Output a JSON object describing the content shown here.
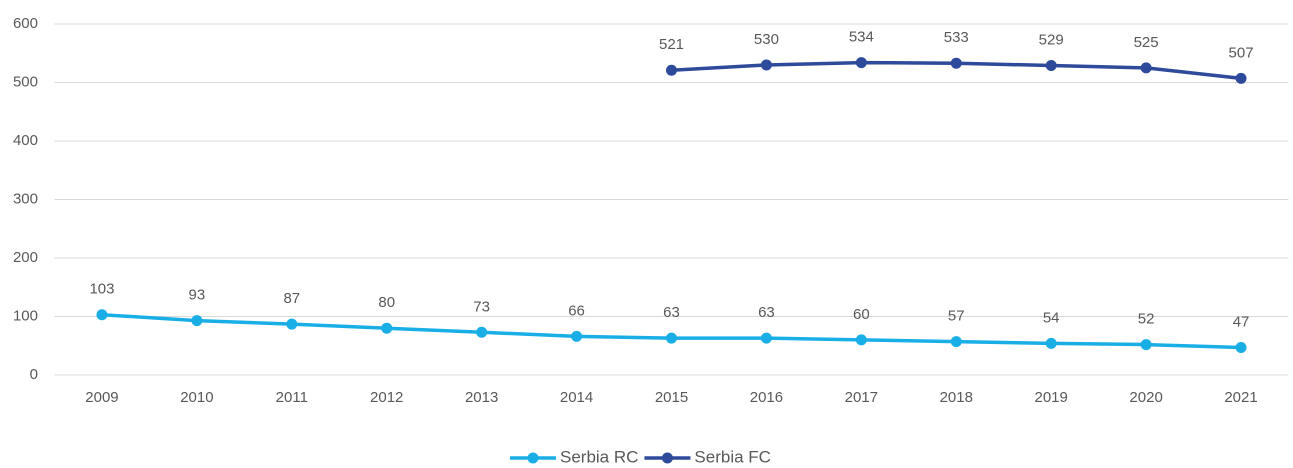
{
  "chart_data": {
    "type": "line",
    "categories": [
      "2009",
      "2010",
      "2011",
      "2012",
      "2013",
      "2014",
      "2015",
      "2016",
      "2017",
      "2018",
      "2019",
      "2020",
      "2021"
    ],
    "series": [
      {
        "name": "Serbia RC",
        "color": "#1aaee6",
        "values": [
          103,
          93,
          87,
          80,
          73,
          66,
          63,
          63,
          60,
          57,
          54,
          52,
          47
        ]
      },
      {
        "name": "Serbia FC",
        "color": "#2e4a9a",
        "values": [
          null,
          null,
          null,
          null,
          null,
          null,
          521,
          530,
          534,
          533,
          529,
          525,
          507
        ]
      }
    ],
    "ylim": [
      0,
      600
    ],
    "yticks": [
      0,
      100,
      200,
      300,
      400,
      500,
      600
    ],
    "grid": true,
    "legend": "bottom"
  }
}
